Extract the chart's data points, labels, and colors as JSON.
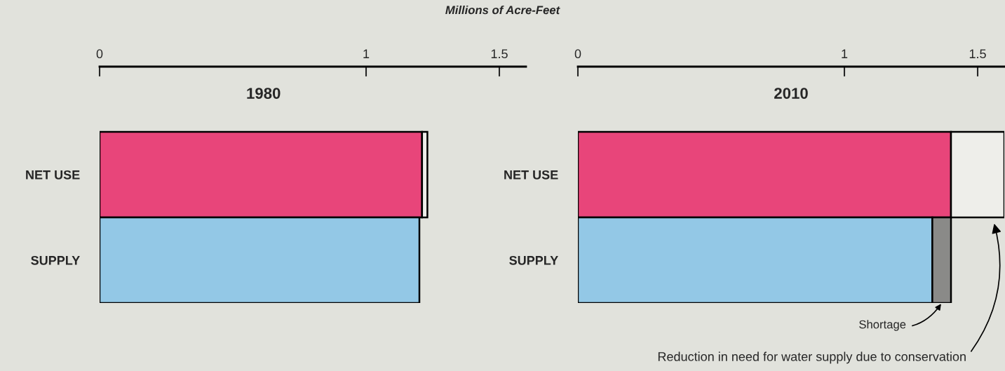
{
  "chart_data": [
    {
      "type": "bar",
      "orientation": "horizontal",
      "stacked": true,
      "title": "1980",
      "xlabel": "Millions of Acre-Feet",
      "categories": [
        "NET USE",
        "SUPPLY"
      ],
      "xlim": [
        0,
        1.6
      ],
      "xticks": [
        0,
        1,
        1.5
      ],
      "grid": false,
      "legend": false,
      "series": [
        {
          "colors": [
            "#e8457a",
            "#93c8e6"
          ],
          "values": [
            1.21,
            1.2
          ]
        },
        {
          "colors": [
            "#eeeeea",
            "#8a8a88"
          ],
          "values": [
            0.02,
            null
          ]
        }
      ]
    },
    {
      "type": "bar",
      "orientation": "horizontal",
      "stacked": true,
      "title": "2010",
      "categories": [
        "NET USE",
        "SUPPLY"
      ],
      "xlim": [
        0,
        1.6
      ],
      "xticks": [
        0,
        1,
        1.5
      ],
      "grid": false,
      "legend": false,
      "series": [
        {
          "colors": [
            "#e8457a",
            "#93c8e6"
          ],
          "values": [
            1.4,
            1.33
          ]
        },
        {
          "colors": [
            "#eeeeea",
            "#8a8a88"
          ],
          "values": [
            0.2,
            0.07
          ]
        }
      ],
      "annotations": [
        "Shortage",
        "Reduction in need for water supply due to conservation"
      ]
    }
  ]
}
